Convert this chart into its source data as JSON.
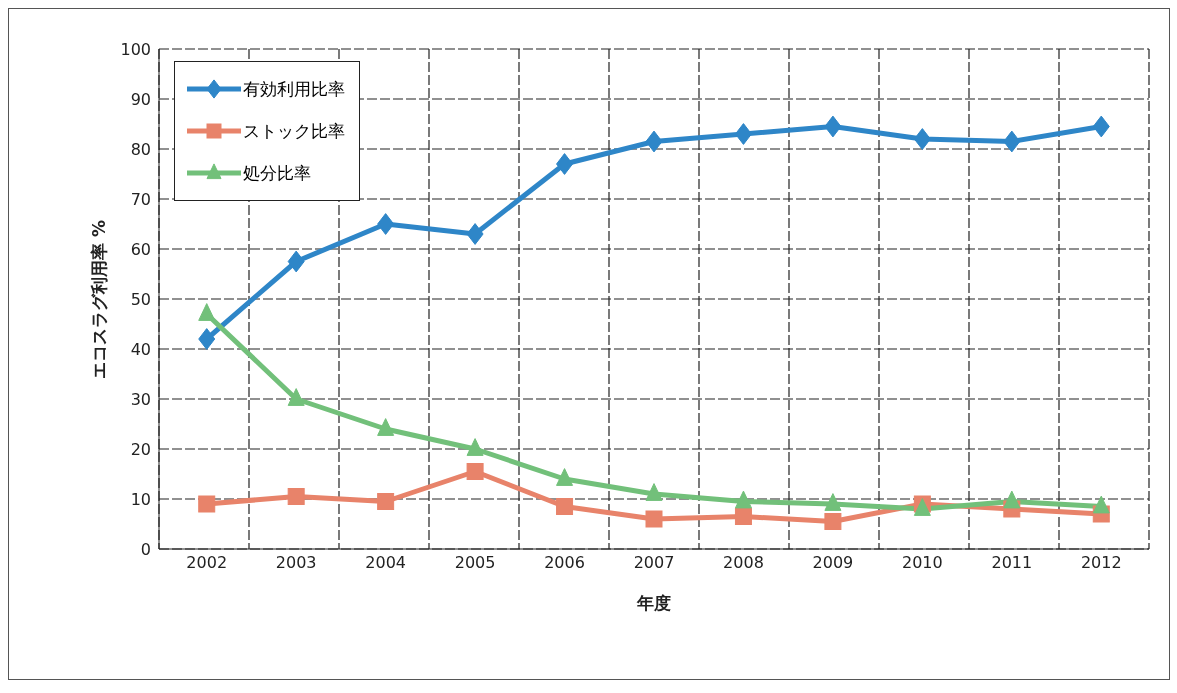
{
  "chart_data": {
    "type": "line",
    "xlabel": "年度",
    "ylabel": "エコスラグ利用率 %",
    "categories": [
      "2002",
      "2003",
      "2004",
      "2005",
      "2006",
      "2007",
      "2008",
      "2009",
      "2010",
      "2011",
      "2012"
    ],
    "series": [
      {
        "name": "有効利用比率",
        "color": "#2e86c8",
        "marker": "diamond",
        "values": [
          42,
          57.5,
          65,
          63,
          77,
          81.5,
          83,
          84.5,
          82,
          81.5,
          84.5
        ]
      },
      {
        "name": "ストック比率",
        "color": "#e8836a",
        "marker": "square",
        "values": [
          9,
          10.5,
          9.5,
          15.5,
          8.5,
          6,
          6.5,
          5.5,
          9,
          8,
          7
        ]
      },
      {
        "name": "処分比率",
        "color": "#72c07a",
        "marker": "triangle",
        "values": [
          47,
          30,
          24,
          20,
          14,
          11,
          9.5,
          9,
          8,
          9.5,
          8.5
        ]
      }
    ],
    "ylim": [
      0,
      100
    ],
    "yticks": [
      0,
      10,
      20,
      30,
      40,
      50,
      60,
      70,
      80,
      90,
      100
    ],
    "grid": true,
    "legend": "top left",
    "line_style": "solid"
  }
}
